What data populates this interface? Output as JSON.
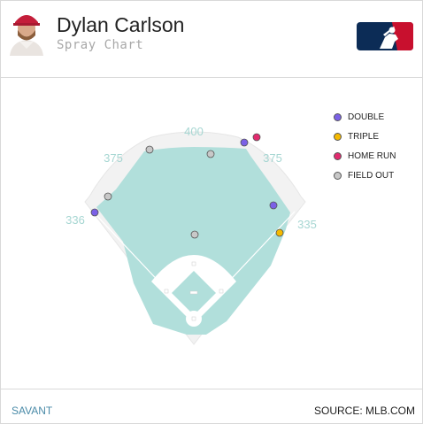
{
  "header": {
    "player_name": "Dylan Carlson",
    "chart_title": "Spray Chart"
  },
  "footer": {
    "left_label": "SAVANT",
    "right_label": "SOURCE: MLB.COM"
  },
  "colors": {
    "field": "#b1dfdb",
    "wall": "#efefef",
    "dirt": "#ffffff",
    "distance_label": "#a6d6d2",
    "double": "#7b61e6",
    "triple": "#f5b900",
    "home_run": "#e22b6f",
    "field_out": "#c8c8c8"
  },
  "chart_data": {
    "type": "scatter",
    "distance_labels": [
      "400",
      "375",
      "375",
      "336",
      "335"
    ],
    "legend": [
      {
        "key": "double",
        "label": "DOUBLE",
        "color": "#7b61e6"
      },
      {
        "key": "triple",
        "label": "TRIPLE",
        "color": "#f5b900"
      },
      {
        "key": "home_run",
        "label": "HOME RUN",
        "color": "#e22b6f"
      },
      {
        "key": "field_out",
        "label": "FIELD OUT",
        "color": "#c8c8c8"
      }
    ],
    "points": [
      {
        "result": "double",
        "coord": [
          275,
          160
        ]
      },
      {
        "result": "home_run",
        "coord": [
          289,
          154
        ]
      },
      {
        "result": "double",
        "coord": [
          308,
          231
        ]
      },
      {
        "result": "triple",
        "coord": [
          315,
          262
        ]
      },
      {
        "result": "double",
        "coord": [
          106,
          239
        ]
      },
      {
        "result": "field_out",
        "coord": [
          168,
          168
        ]
      },
      {
        "result": "field_out",
        "coord": [
          237,
          173
        ]
      },
      {
        "result": "field_out",
        "coord": [
          121,
          221
        ]
      },
      {
        "result": "field_out",
        "coord": [
          219,
          264
        ]
      }
    ]
  }
}
